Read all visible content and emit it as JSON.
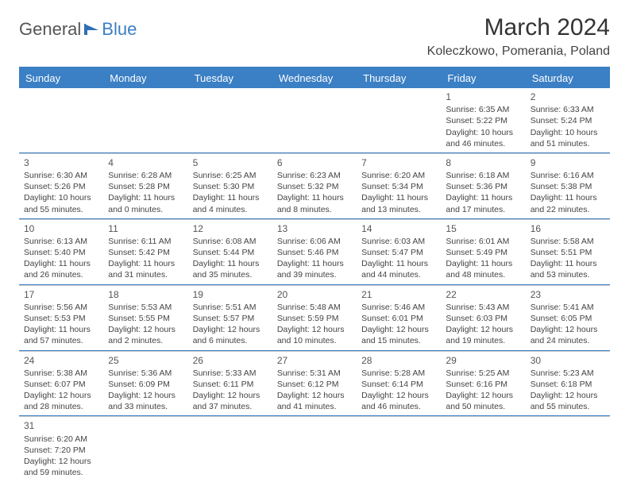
{
  "logo": {
    "text1": "General",
    "text2": "Blue"
  },
  "title": "March 2024",
  "location": "Koleczkowo, Pomerania, Poland",
  "colors": {
    "accent": "#3b7fc4",
    "text": "#444444",
    "bg": "#ffffff"
  },
  "day_names": [
    "Sunday",
    "Monday",
    "Tuesday",
    "Wednesday",
    "Thursday",
    "Friday",
    "Saturday"
  ],
  "weeks": [
    [
      null,
      null,
      null,
      null,
      null,
      {
        "n": "1",
        "sr": "6:35 AM",
        "ss": "5:22 PM",
        "dl": "10 hours and 46 minutes."
      },
      {
        "n": "2",
        "sr": "6:33 AM",
        "ss": "5:24 PM",
        "dl": "10 hours and 51 minutes."
      }
    ],
    [
      {
        "n": "3",
        "sr": "6:30 AM",
        "ss": "5:26 PM",
        "dl": "10 hours and 55 minutes."
      },
      {
        "n": "4",
        "sr": "6:28 AM",
        "ss": "5:28 PM",
        "dl": "11 hours and 0 minutes."
      },
      {
        "n": "5",
        "sr": "6:25 AM",
        "ss": "5:30 PM",
        "dl": "11 hours and 4 minutes."
      },
      {
        "n": "6",
        "sr": "6:23 AM",
        "ss": "5:32 PM",
        "dl": "11 hours and 8 minutes."
      },
      {
        "n": "7",
        "sr": "6:20 AM",
        "ss": "5:34 PM",
        "dl": "11 hours and 13 minutes."
      },
      {
        "n": "8",
        "sr": "6:18 AM",
        "ss": "5:36 PM",
        "dl": "11 hours and 17 minutes."
      },
      {
        "n": "9",
        "sr": "6:16 AM",
        "ss": "5:38 PM",
        "dl": "11 hours and 22 minutes."
      }
    ],
    [
      {
        "n": "10",
        "sr": "6:13 AM",
        "ss": "5:40 PM",
        "dl": "11 hours and 26 minutes."
      },
      {
        "n": "11",
        "sr": "6:11 AM",
        "ss": "5:42 PM",
        "dl": "11 hours and 31 minutes."
      },
      {
        "n": "12",
        "sr": "6:08 AM",
        "ss": "5:44 PM",
        "dl": "11 hours and 35 minutes."
      },
      {
        "n": "13",
        "sr": "6:06 AM",
        "ss": "5:46 PM",
        "dl": "11 hours and 39 minutes."
      },
      {
        "n": "14",
        "sr": "6:03 AM",
        "ss": "5:47 PM",
        "dl": "11 hours and 44 minutes."
      },
      {
        "n": "15",
        "sr": "6:01 AM",
        "ss": "5:49 PM",
        "dl": "11 hours and 48 minutes."
      },
      {
        "n": "16",
        "sr": "5:58 AM",
        "ss": "5:51 PM",
        "dl": "11 hours and 53 minutes."
      }
    ],
    [
      {
        "n": "17",
        "sr": "5:56 AM",
        "ss": "5:53 PM",
        "dl": "11 hours and 57 minutes."
      },
      {
        "n": "18",
        "sr": "5:53 AM",
        "ss": "5:55 PM",
        "dl": "12 hours and 2 minutes."
      },
      {
        "n": "19",
        "sr": "5:51 AM",
        "ss": "5:57 PM",
        "dl": "12 hours and 6 minutes."
      },
      {
        "n": "20",
        "sr": "5:48 AM",
        "ss": "5:59 PM",
        "dl": "12 hours and 10 minutes."
      },
      {
        "n": "21",
        "sr": "5:46 AM",
        "ss": "6:01 PM",
        "dl": "12 hours and 15 minutes."
      },
      {
        "n": "22",
        "sr": "5:43 AM",
        "ss": "6:03 PM",
        "dl": "12 hours and 19 minutes."
      },
      {
        "n": "23",
        "sr": "5:41 AM",
        "ss": "6:05 PM",
        "dl": "12 hours and 24 minutes."
      }
    ],
    [
      {
        "n": "24",
        "sr": "5:38 AM",
        "ss": "6:07 PM",
        "dl": "12 hours and 28 minutes."
      },
      {
        "n": "25",
        "sr": "5:36 AM",
        "ss": "6:09 PM",
        "dl": "12 hours and 33 minutes."
      },
      {
        "n": "26",
        "sr": "5:33 AM",
        "ss": "6:11 PM",
        "dl": "12 hours and 37 minutes."
      },
      {
        "n": "27",
        "sr": "5:31 AM",
        "ss": "6:12 PM",
        "dl": "12 hours and 41 minutes."
      },
      {
        "n": "28",
        "sr": "5:28 AM",
        "ss": "6:14 PM",
        "dl": "12 hours and 46 minutes."
      },
      {
        "n": "29",
        "sr": "5:25 AM",
        "ss": "6:16 PM",
        "dl": "12 hours and 50 minutes."
      },
      {
        "n": "30",
        "sr": "5:23 AM",
        "ss": "6:18 PM",
        "dl": "12 hours and 55 minutes."
      }
    ],
    [
      {
        "n": "31",
        "sr": "6:20 AM",
        "ss": "7:20 PM",
        "dl": "12 hours and 59 minutes."
      },
      null,
      null,
      null,
      null,
      null,
      null
    ]
  ],
  "labels": {
    "sunrise": "Sunrise:",
    "sunset": "Sunset:",
    "daylight": "Daylight:"
  }
}
